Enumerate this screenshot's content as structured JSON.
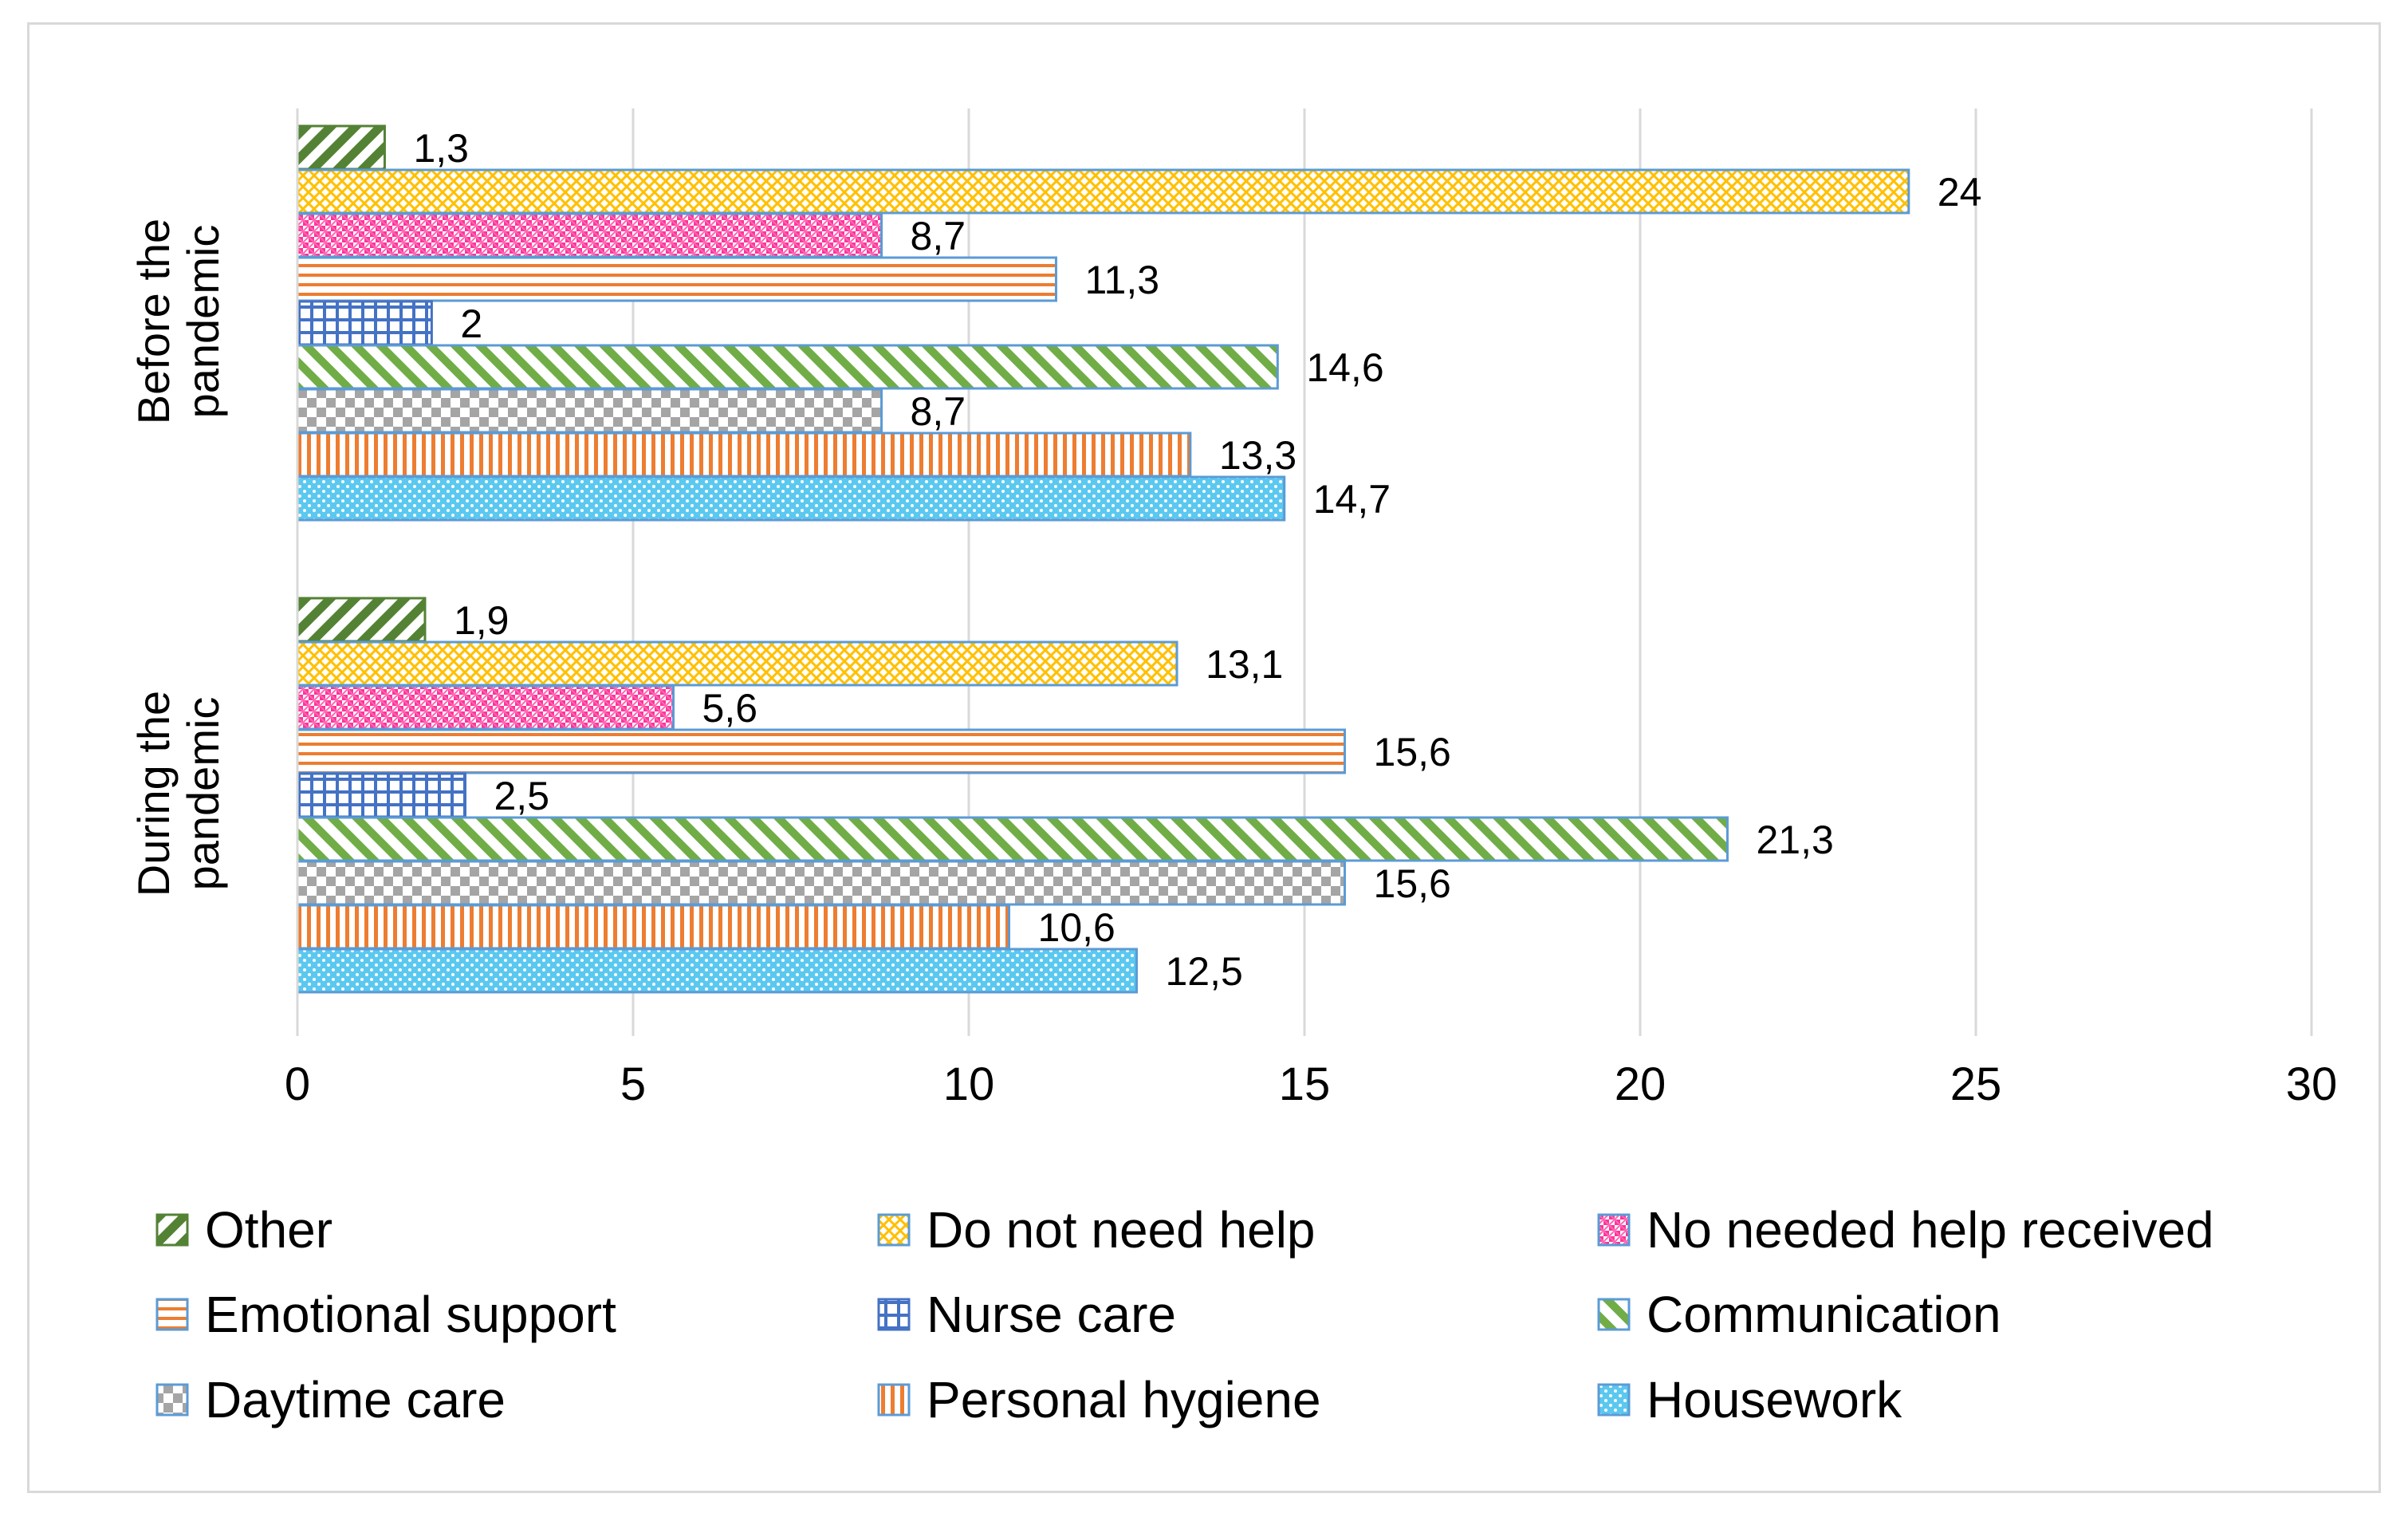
{
  "chart_data": {
    "type": "bar",
    "orientation": "horizontal",
    "title": "",
    "xlabel": "",
    "ylabel": "",
    "xlim": [
      0,
      30
    ],
    "xticks": [
      0,
      5,
      10,
      15,
      20,
      25,
      30
    ],
    "grid": "vertical",
    "legend_position": "bottom",
    "categories": [
      "Before the pandemic",
      "During the pandemic"
    ],
    "category_labels": [
      [
        "Before the",
        "pandemic"
      ],
      [
        "During the",
        "pandemic"
      ]
    ],
    "series": [
      {
        "name": "Other",
        "values": [
          1.3,
          1.9
        ],
        "labels": [
          "1,3",
          "1,9"
        ],
        "pattern": "diag-dark",
        "color": "#548235",
        "border": "#548235"
      },
      {
        "name": "Do not need help",
        "values": [
          24,
          13.1
        ],
        "labels": [
          "24",
          "13,1"
        ],
        "pattern": "lattice-yellow",
        "color": "#ffc000",
        "border": "#5b9bd5"
      },
      {
        "name": "No needed help received",
        "values": [
          8.7,
          5.6
        ],
        "labels": [
          "8,7",
          "5,6"
        ],
        "pattern": "checker-pink",
        "color": "#ff3399",
        "border": "#5b9bd5"
      },
      {
        "name": "Emotional support",
        "values": [
          11.3,
          15.6
        ],
        "labels": [
          "11,3",
          "15,6"
        ],
        "pattern": "horiz-orange",
        "color": "#ed7d31",
        "border": "#5b9bd5"
      },
      {
        "name": "Nurse care",
        "values": [
          2,
          2.5
        ],
        "labels": [
          "2",
          "2,5"
        ],
        "pattern": "grid-blue",
        "color": "#4472c4",
        "border": "#4472c4"
      },
      {
        "name": "Communication",
        "values": [
          14.6,
          21.3
        ],
        "labels": [
          "14,6",
          "21,3"
        ],
        "pattern": "diag-green",
        "color": "#70ad47",
        "border": "#5b9bd5"
      },
      {
        "name": "Daytime care",
        "values": [
          8.7,
          15.6
        ],
        "labels": [
          "8,7",
          "15,6"
        ],
        "pattern": "checker-gray",
        "color": "#a5a5a5",
        "border": "#5b9bd5"
      },
      {
        "name": "Personal hygiene",
        "values": [
          13.3,
          10.6
        ],
        "labels": [
          "13,3",
          "10,6"
        ],
        "pattern": "vert-orange",
        "color": "#ed7d31",
        "border": "#5b9bd5"
      },
      {
        "name": "Housework",
        "values": [
          14.7,
          12.5
        ],
        "labels": [
          "14,7",
          "12,5"
        ],
        "pattern": "dots-lightblue",
        "color": "#5bc8f0",
        "border": "#5b9bd5"
      }
    ]
  }
}
